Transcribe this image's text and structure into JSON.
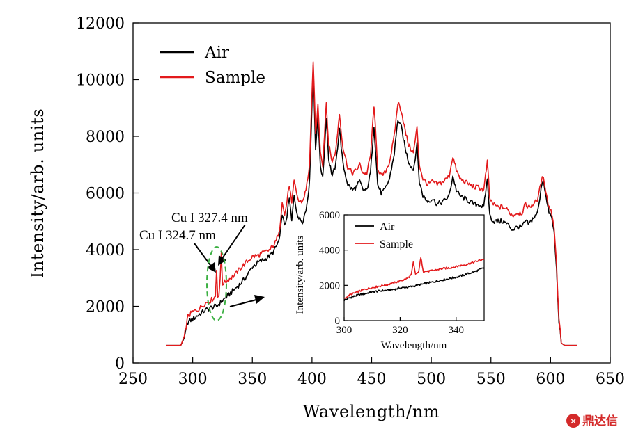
{
  "chart_data": [
    {
      "type": "line",
      "xlabel": "Wavelength/nm",
      "ylabel": "Intensity/arb. units",
      "xlim": [
        250,
        650
      ],
      "ylim": [
        0,
        12000
      ],
      "x_ticks": [
        250,
        300,
        350,
        400,
        450,
        500,
        550,
        600,
        650
      ],
      "y_ticks": [
        0,
        2000,
        4000,
        6000,
        8000,
        10000,
        12000
      ],
      "legend_position": "top-left",
      "series": [
        {
          "name": "Air",
          "color": "#000000",
          "points": [
            [
              278,
              620
            ],
            [
              290,
              620
            ],
            [
              293,
              900
            ],
            [
              296,
              1450
            ],
            [
              300,
              1550
            ],
            [
              305,
              1700
            ],
            [
              310,
              1850
            ],
            [
              315,
              1950
            ],
            [
              320,
              2000
            ],
            [
              325,
              2200
            ],
            [
              330,
              2400
            ],
            [
              335,
              2600
            ],
            [
              340,
              2800
            ],
            [
              345,
              3050
            ],
            [
              350,
              3400
            ],
            [
              355,
              3550
            ],
            [
              360,
              3650
            ],
            [
              365,
              3800
            ],
            [
              368,
              3950
            ],
            [
              370,
              4100
            ],
            [
              373,
              4400
            ],
            [
              375,
              5300
            ],
            [
              377,
              4800
            ],
            [
              379,
              5200
            ],
            [
              381,
              5800
            ],
            [
              383,
              5000
            ],
            [
              385,
              5900
            ],
            [
              387,
              5400
            ],
            [
              389,
              5100
            ],
            [
              392,
              5000
            ],
            [
              395,
              5400
            ],
            [
              398,
              6400
            ],
            [
              401,
              10500
            ],
            [
              403,
              7600
            ],
            [
              405,
              8700
            ],
            [
              407,
              7000
            ],
            [
              409,
              6500
            ],
            [
              412,
              8700
            ],
            [
              414,
              7200
            ],
            [
              417,
              6600
            ],
            [
              420,
              7000
            ],
            [
              423,
              8300
            ],
            [
              426,
              7000
            ],
            [
              430,
              6300
            ],
            [
              434,
              6100
            ],
            [
              437,
              6200
            ],
            [
              440,
              6400
            ],
            [
              443,
              6100
            ],
            [
              446,
              6100
            ],
            [
              449,
              6700
            ],
            [
              452,
              8400
            ],
            [
              455,
              6300
            ],
            [
              458,
              6000
            ],
            [
              461,
              6100
            ],
            [
              465,
              6500
            ],
            [
              469,
              7400
            ],
            [
              472,
              8600
            ],
            [
              475,
              8300
            ],
            [
              478,
              7600
            ],
            [
              481,
              7100
            ],
            [
              485,
              6800
            ],
            [
              488,
              7700
            ],
            [
              490,
              6400
            ],
            [
              493,
              5900
            ],
            [
              497,
              5700
            ],
            [
              501,
              5800
            ],
            [
              505,
              5600
            ],
            [
              510,
              5700
            ],
            [
              515,
              5900
            ],
            [
              518,
              6600
            ],
            [
              521,
              6100
            ],
            [
              524,
              5900
            ],
            [
              528,
              5800
            ],
            [
              532,
              5700
            ],
            [
              536,
              5600
            ],
            [
              540,
              5600
            ],
            [
              544,
              5500
            ],
            [
              547,
              6500
            ],
            [
              549,
              5200
            ],
            [
              552,
              5000
            ],
            [
              556,
              5000
            ],
            [
              560,
              5000
            ],
            [
              564,
              4900
            ],
            [
              568,
              4700
            ],
            [
              572,
              4800
            ],
            [
              576,
              4800
            ],
            [
              579,
              5000
            ],
            [
              582,
              4900
            ],
            [
              585,
              5100
            ],
            [
              588,
              5200
            ],
            [
              590,
              5500
            ],
            [
              592,
              6200
            ],
            [
              594,
              6500
            ],
            [
              596,
              5900
            ],
            [
              598,
              5400
            ],
            [
              601,
              5100
            ],
            [
              603,
              4600
            ],
            [
              605,
              3300
            ],
            [
              607,
              1500
            ],
            [
              609,
              700
            ],
            [
              612,
              620
            ],
            [
              622,
              620
            ]
          ]
        },
        {
          "name": "Sample",
          "color": "#e31a1c",
          "points": [
            [
              278,
              620
            ],
            [
              290,
              620
            ],
            [
              293,
              950
            ],
            [
              296,
              1650
            ],
            [
              300,
              1800
            ],
            [
              305,
              1900
            ],
            [
              310,
              2100
            ],
            [
              315,
              2200
            ],
            [
              319,
              2350
            ],
            [
              320,
              3300
            ],
            [
              321,
              2400
            ],
            [
              322,
              2400
            ],
            [
              323,
              2900
            ],
            [
              324,
              3900
            ],
            [
              325,
              2800
            ],
            [
              330,
              2950
            ],
            [
              335,
              3100
            ],
            [
              340,
              3350
            ],
            [
              345,
              3550
            ],
            [
              350,
              3750
            ],
            [
              355,
              3800
            ],
            [
              360,
              3900
            ],
            [
              365,
              4000
            ],
            [
              370,
              4300
            ],
            [
              373,
              4800
            ],
            [
              375,
              5700
            ],
            [
              377,
              5200
            ],
            [
              379,
              5700
            ],
            [
              381,
              6300
            ],
            [
              383,
              5600
            ],
            [
              385,
              6400
            ],
            [
              387,
              6000
            ],
            [
              389,
              5700
            ],
            [
              392,
              5700
            ],
            [
              395,
              6100
            ],
            [
              398,
              7000
            ],
            [
              401,
              10700
            ],
            [
              403,
              8100
            ],
            [
              405,
              9100
            ],
            [
              407,
              7500
            ],
            [
              409,
              7000
            ],
            [
              412,
              9200
            ],
            [
              414,
              7700
            ],
            [
              417,
              7100
            ],
            [
              420,
              7500
            ],
            [
              423,
              8800
            ],
            [
              426,
              7600
            ],
            [
              430,
              6900
            ],
            [
              434,
              6700
            ],
            [
              437,
              6800
            ],
            [
              440,
              7000
            ],
            [
              443,
              6700
            ],
            [
              446,
              6700
            ],
            [
              449,
              7300
            ],
            [
              452,
              9100
            ],
            [
              455,
              6900
            ],
            [
              458,
              6600
            ],
            [
              461,
              6700
            ],
            [
              465,
              7100
            ],
            [
              469,
              8000
            ],
            [
              472,
              9200
            ],
            [
              475,
              8900
            ],
            [
              478,
              8200
            ],
            [
              481,
              7700
            ],
            [
              485,
              7400
            ],
            [
              488,
              8300
            ],
            [
              490,
              7000
            ],
            [
              493,
              6500
            ],
            [
              497,
              6300
            ],
            [
              501,
              6400
            ],
            [
              505,
              6300
            ],
            [
              510,
              6400
            ],
            [
              515,
              6600
            ],
            [
              518,
              7300
            ],
            [
              521,
              6800
            ],
            [
              524,
              6500
            ],
            [
              528,
              6400
            ],
            [
              532,
              6300
            ],
            [
              536,
              6200
            ],
            [
              540,
              6200
            ],
            [
              544,
              6100
            ],
            [
              547,
              7100
            ],
            [
              549,
              5800
            ],
            [
              552,
              5600
            ],
            [
              556,
              5500
            ],
            [
              560,
              5500
            ],
            [
              564,
              5400
            ],
            [
              568,
              5200
            ],
            [
              572,
              5300
            ],
            [
              576,
              5300
            ],
            [
              579,
              5600
            ],
            [
              582,
              5500
            ],
            [
              585,
              5600
            ],
            [
              588,
              5700
            ],
            [
              590,
              5900
            ],
            [
              592,
              6400
            ],
            [
              594,
              6600
            ],
            [
              596,
              6100
            ],
            [
              598,
              5600
            ],
            [
              601,
              5300
            ],
            [
              603,
              4800
            ],
            [
              605,
              3500
            ],
            [
              607,
              1600
            ],
            [
              609,
              700
            ],
            [
              612,
              620
            ],
            [
              622,
              620
            ]
          ]
        }
      ],
      "annotations": [
        {
          "text": "Cu I 327.4 nm",
          "x": 325,
          "y": 3700
        },
        {
          "text": "Cu I 324.7 nm",
          "x": 320,
          "y": 3300
        }
      ]
    },
    {
      "type": "line",
      "role": "inset",
      "xlabel": "Wavelength/nm",
      "ylabel": "Intensity/arb. units",
      "xlim": [
        300,
        350
      ],
      "ylim": [
        0,
        6000
      ],
      "x_ticks": [
        300,
        320,
        340
      ],
      "y_ticks": [
        0,
        2000,
        4000,
        6000
      ],
      "legend_position": "top-left",
      "series": [
        {
          "name": "Air",
          "color": "#000000",
          "points": [
            [
              300,
              1150
            ],
            [
              302,
              1300
            ],
            [
              305,
              1450
            ],
            [
              308,
              1550
            ],
            [
              311,
              1650
            ],
            [
              314,
              1700
            ],
            [
              317,
              1750
            ],
            [
              320,
              1850
            ],
            [
              323,
              1900
            ],
            [
              326,
              2000
            ],
            [
              329,
              2100
            ],
            [
              332,
              2200
            ],
            [
              335,
              2300
            ],
            [
              338,
              2400
            ],
            [
              341,
              2500
            ],
            [
              344,
              2650
            ],
            [
              347,
              2800
            ],
            [
              350,
              3000
            ]
          ]
        },
        {
          "name": "Sample",
          "color": "#e31a1c",
          "points": [
            [
              300,
              1250
            ],
            [
              302,
              1450
            ],
            [
              305,
              1650
            ],
            [
              308,
              1800
            ],
            [
              311,
              1900
            ],
            [
              314,
              2000
            ],
            [
              317,
              2100
            ],
            [
              320,
              2250
            ],
            [
              322,
              2350
            ],
            [
              323,
              2450
            ],
            [
              324,
              2600
            ],
            [
              324.7,
              3300
            ],
            [
              325.5,
              2650
            ],
            [
              326.5,
              2700
            ],
            [
              327.4,
              3550
            ],
            [
              328.3,
              2800
            ],
            [
              330,
              2800
            ],
            [
              332,
              2850
            ],
            [
              335,
              2950
            ],
            [
              338,
              3000
            ],
            [
              341,
              3100
            ],
            [
              344,
              3200
            ],
            [
              347,
              3350
            ],
            [
              350,
              3500
            ]
          ]
        }
      ]
    }
  ],
  "watermark": {
    "text": "鼎达信",
    "color": "#d42a2a"
  }
}
